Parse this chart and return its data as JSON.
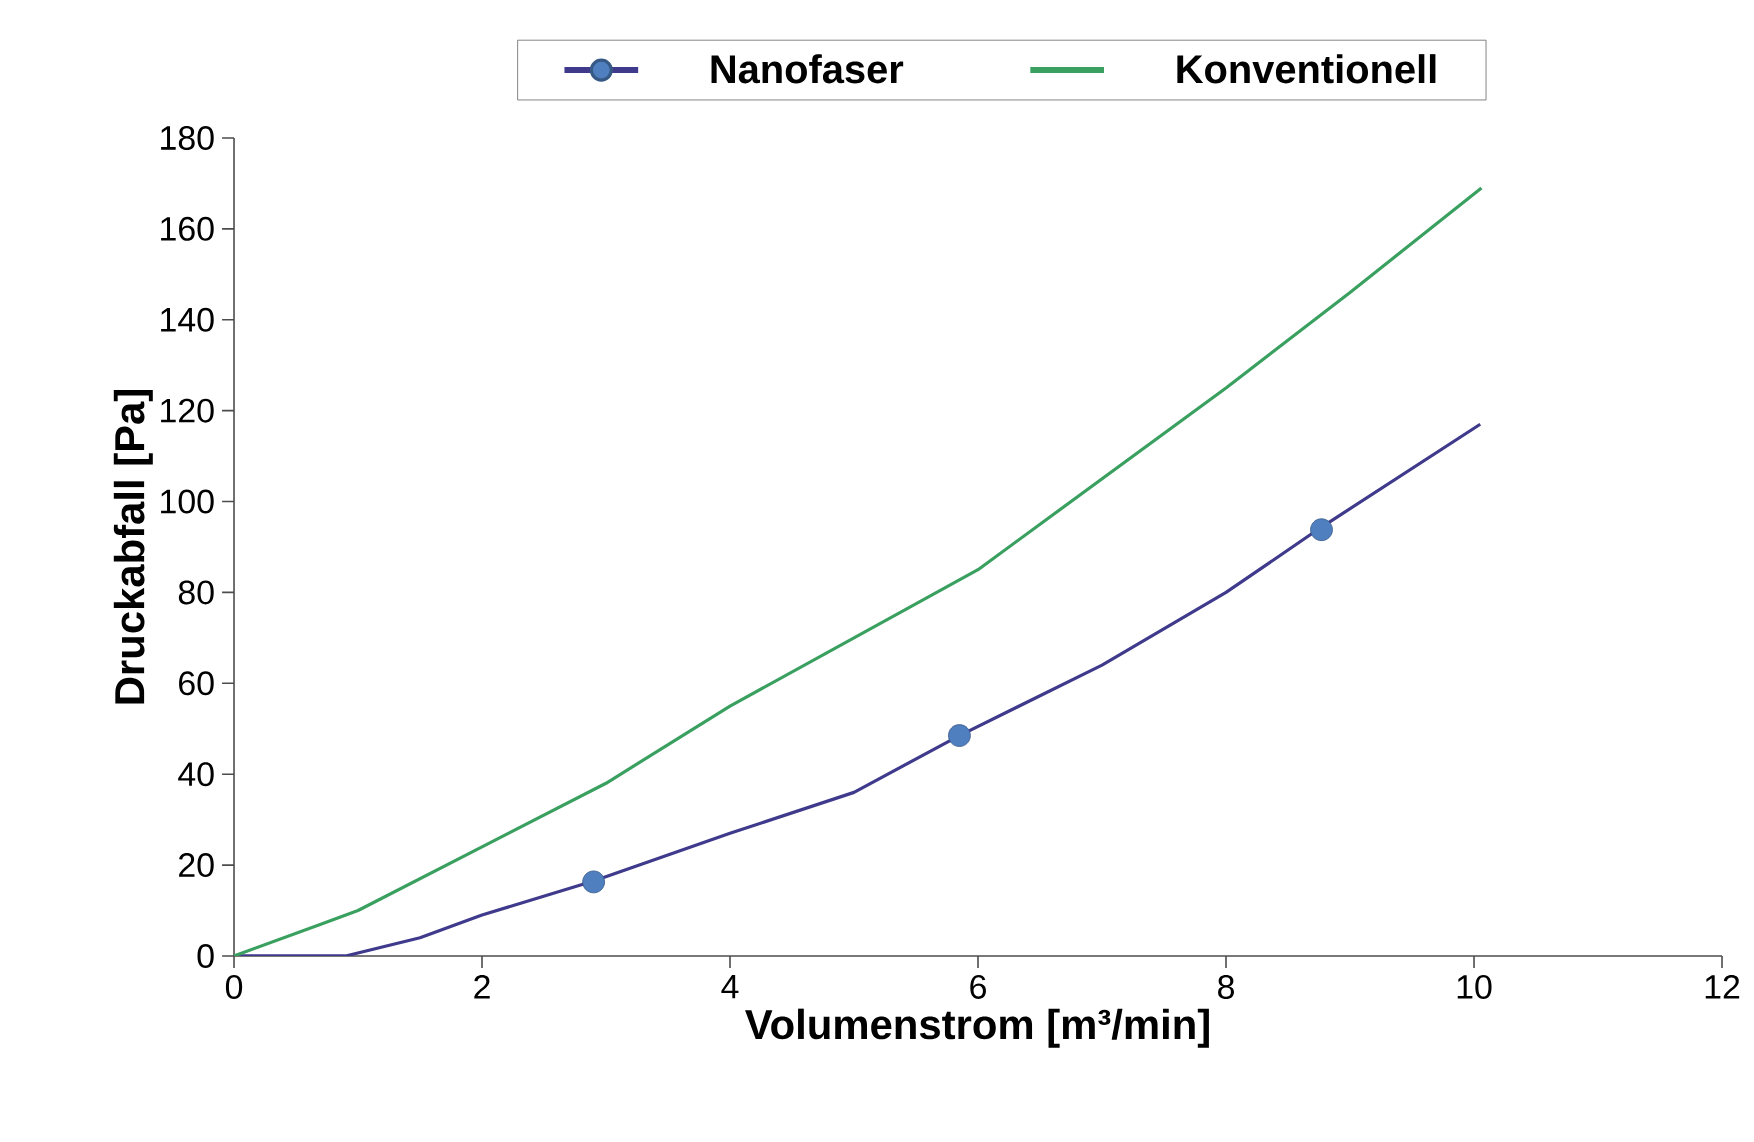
{
  "chart_data": {
    "type": "line",
    "xlabel": "Volumenstrom [m³/min]",
    "ylabel": "Druckabfall [Pa]",
    "xlim": [
      0,
      12
    ],
    "ylim": [
      0,
      180
    ],
    "xticks": [
      0,
      2,
      4,
      6,
      8,
      10,
      12
    ],
    "yticks": [
      0,
      20,
      40,
      60,
      80,
      100,
      120,
      140,
      160,
      180
    ],
    "legend": "top",
    "series": [
      {
        "name": "Nanofaser",
        "color": "#3f3a8c",
        "marker": "none",
        "x": [
          0,
          0.9,
          1.5,
          2,
          2.9,
          4,
          5,
          5.85,
          7,
          8,
          8.75,
          10.05
        ],
        "values": [
          0,
          0,
          4,
          9,
          16.5,
          27,
          36,
          48.5,
          64,
          80,
          94,
          117
        ]
      },
      {
        "type": "scatter",
        "color": "#4f7fbf",
        "marker": "circle",
        "x": [
          2.9,
          5.85,
          8.77
        ],
        "values": [
          16.3,
          48.5,
          93.8
        ]
      },
      {
        "name": "Konventionell",
        "color": "#3aa060",
        "marker": "none",
        "x": [
          0,
          0.7,
          1,
          2,
          3,
          4,
          5,
          6,
          7,
          8,
          9,
          10.06
        ],
        "values": [
          0,
          7,
          10,
          24,
          38,
          55,
          70,
          85,
          105,
          125,
          146,
          169
        ]
      }
    ]
  }
}
